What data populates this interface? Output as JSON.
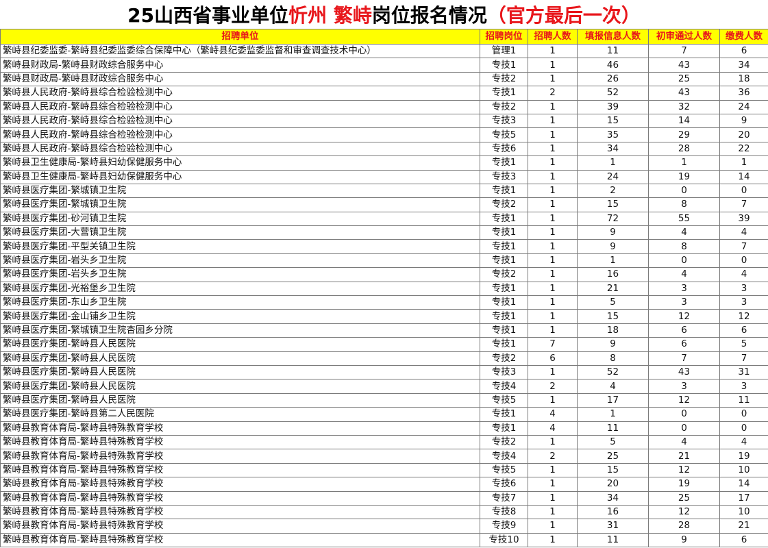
{
  "title": {
    "part1": "25山西省事业单位 ",
    "part2": "忻州 繁峙",
    "part3": " 岗位报名情况",
    "part4": "（官方最后一次）"
  },
  "colors": {
    "header_bg": "#ffff00",
    "header_text": "#e8161b",
    "title_accent": "#e8161b"
  },
  "table": {
    "headers": [
      "招聘单位",
      "招聘岗位",
      "招聘人数",
      "填报信息人数",
      "初审通过人数",
      "缴费人数"
    ],
    "rows": [
      [
        "繁峙县纪委监委-繁峙县纪委监委综合保障中心（繁峙县纪委监委监督和审查调查技术中心）",
        "管理1",
        "1",
        "11",
        "7",
        "6"
      ],
      [
        "繁峙县财政局-繁峙县财政综合服务中心",
        "专技1",
        "1",
        "46",
        "43",
        "34"
      ],
      [
        "繁峙县财政局-繁峙县财政综合服务中心",
        "专技2",
        "1",
        "26",
        "25",
        "18"
      ],
      [
        "繁峙县人民政府-繁峙县综合检验检测中心",
        "专技1",
        "2",
        "52",
        "43",
        "36"
      ],
      [
        "繁峙县人民政府-繁峙县综合检验检测中心",
        "专技2",
        "1",
        "39",
        "32",
        "24"
      ],
      [
        "繁峙县人民政府-繁峙县综合检验检测中心",
        "专技3",
        "1",
        "15",
        "14",
        "9"
      ],
      [
        "繁峙县人民政府-繁峙县综合检验检测中心",
        "专技5",
        "1",
        "35",
        "29",
        "20"
      ],
      [
        "繁峙县人民政府-繁峙县综合检验检测中心",
        "专技6",
        "1",
        "34",
        "28",
        "22"
      ],
      [
        "繁峙县卫生健康局-繁峙县妇幼保健服务中心",
        "专技1",
        "1",
        "1",
        "1",
        "1"
      ],
      [
        "繁峙县卫生健康局-繁峙县妇幼保健服务中心",
        "专技3",
        "1",
        "24",
        "19",
        "14"
      ],
      [
        "繁峙县医疗集团-繁城镇卫生院",
        "专技1",
        "1",
        "2",
        "0",
        "0"
      ],
      [
        "繁峙县医疗集团-繁城镇卫生院",
        "专技2",
        "1",
        "15",
        "8",
        "7"
      ],
      [
        "繁峙县医疗集团-砂河镇卫生院",
        "专技1",
        "1",
        "72",
        "55",
        "39"
      ],
      [
        "繁峙县医疗集团-大营镇卫生院",
        "专技1",
        "1",
        "9",
        "4",
        "4"
      ],
      [
        "繁峙县医疗集团-平型关镇卫生院",
        "专技1",
        "1",
        "9",
        "8",
        "7"
      ],
      [
        "繁峙县医疗集团-岩头乡卫生院",
        "专技1",
        "1",
        "1",
        "0",
        "0"
      ],
      [
        "繁峙县医疗集团-岩头乡卫生院",
        "专技2",
        "1",
        "16",
        "4",
        "4"
      ],
      [
        "繁峙县医疗集团-光裕堡乡卫生院",
        "专技1",
        "1",
        "21",
        "3",
        "3"
      ],
      [
        "繁峙县医疗集团-东山乡卫生院",
        "专技1",
        "1",
        "5",
        "3",
        "3"
      ],
      [
        "繁峙县医疗集团-金山铺乡卫生院",
        "专技1",
        "1",
        "15",
        "12",
        "12"
      ],
      [
        "繁峙县医疗集团-繁城镇卫生院杏园乡分院",
        "专技1",
        "1",
        "18",
        "6",
        "6"
      ],
      [
        "繁峙县医疗集团-繁峙县人民医院",
        "专技1",
        "7",
        "9",
        "6",
        "5"
      ],
      [
        "繁峙县医疗集团-繁峙县人民医院",
        "专技2",
        "6",
        "8",
        "7",
        "7"
      ],
      [
        "繁峙县医疗集团-繁峙县人民医院",
        "专技3",
        "1",
        "52",
        "43",
        "31"
      ],
      [
        "繁峙县医疗集团-繁峙县人民医院",
        "专技4",
        "2",
        "4",
        "3",
        "3"
      ],
      [
        "繁峙县医疗集团-繁峙县人民医院",
        "专技5",
        "1",
        "17",
        "12",
        "11"
      ],
      [
        "繁峙县医疗集团-繁峙县第二人民医院",
        "专技1",
        "4",
        "1",
        "0",
        "0"
      ],
      [
        "繁峙县教育体育局-繁峙县特殊教育学校",
        "专技1",
        "4",
        "11",
        "0",
        "0"
      ],
      [
        "繁峙县教育体育局-繁峙县特殊教育学校",
        "专技2",
        "1",
        "5",
        "4",
        "4"
      ],
      [
        "繁峙县教育体育局-繁峙县特殊教育学校",
        "专技4",
        "2",
        "25",
        "21",
        "19"
      ],
      [
        "繁峙县教育体育局-繁峙县特殊教育学校",
        "专技5",
        "1",
        "15",
        "12",
        "10"
      ],
      [
        "繁峙县教育体育局-繁峙县特殊教育学校",
        "专技6",
        "1",
        "20",
        "19",
        "14"
      ],
      [
        "繁峙县教育体育局-繁峙县特殊教育学校",
        "专技7",
        "1",
        "34",
        "25",
        "17"
      ],
      [
        "繁峙县教育体育局-繁峙县特殊教育学校",
        "专技8",
        "1",
        "16",
        "12",
        "10"
      ],
      [
        "繁峙县教育体育局-繁峙县特殊教育学校",
        "专技9",
        "1",
        "31",
        "28",
        "21"
      ],
      [
        "繁峙县教育体育局-繁峙县特殊教育学校",
        "专技10",
        "1",
        "11",
        "9",
        "6"
      ]
    ]
  }
}
